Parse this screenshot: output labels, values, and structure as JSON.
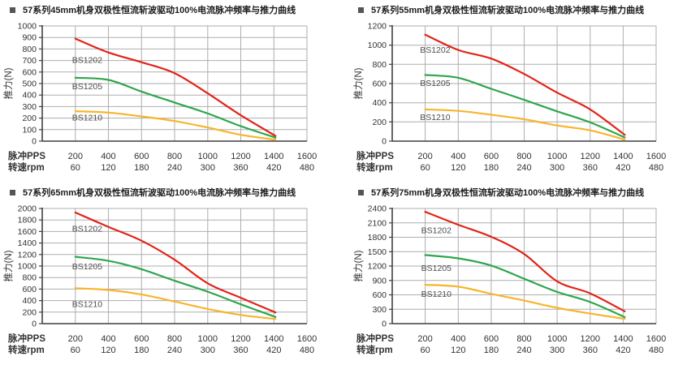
{
  "page": {
    "background": "#ffffff"
  },
  "axis_labels": {
    "row1": "脉冲PPS",
    "row2": "转速rpm",
    "y": "推力(N)"
  },
  "colors": {
    "red": "#e2231a",
    "green": "#2ea64b",
    "yellow": "#f7b52c",
    "grid": "#aeaeae",
    "axis": "#3f3f3f",
    "tick_text": "#333333",
    "series_label": "#4d4d4d",
    "title_text": "#1c1c1c",
    "bullet": "#555555"
  },
  "chart_data": [
    {
      "type": "line",
      "title": "57系列45mm机身双极性恒流斩波驱动100%电流脉冲频率与推力曲线",
      "ylabel": "推力(N)",
      "ylim": [
        0,
        1000
      ],
      "y_step": 100,
      "x_pps": [
        200,
        400,
        600,
        800,
        1000,
        1200,
        1400,
        1600
      ],
      "x_rpm": [
        60,
        120,
        180,
        240,
        300,
        360,
        420,
        480
      ],
      "x_points": [
        200,
        400,
        600,
        800,
        1000,
        1200,
        1410
      ],
      "series": [
        {
          "name": "BS1202",
          "color": "red",
          "values": [
            890,
            770,
            685,
            590,
            415,
            225,
            45
          ],
          "label_at": [
            190,
            705
          ]
        },
        {
          "name": "BS1205",
          "color": "green",
          "values": [
            550,
            532,
            430,
            335,
            240,
            130,
            30
          ],
          "label_at": [
            190,
            475
          ]
        },
        {
          "name": "BS1210",
          "color": "yellow",
          "values": [
            260,
            248,
            215,
            175,
            118,
            55,
            12
          ],
          "label_at": [
            190,
            205
          ]
        }
      ]
    },
    {
      "type": "line",
      "title": "57系列55mm机身双极性恒流斩波驱动100%电流脉冲频率与推力曲线",
      "ylabel": "推力(N)",
      "ylim": [
        0,
        1200
      ],
      "y_step": 200,
      "x_pps": [
        200,
        400,
        600,
        800,
        1000,
        1200,
        1400,
        1600
      ],
      "x_rpm": [
        60,
        120,
        180,
        240,
        300,
        360,
        420,
        480
      ],
      "x_points": [
        200,
        400,
        600,
        800,
        1000,
        1200,
        1410
      ],
      "series": [
        {
          "name": "BS1202",
          "color": "red",
          "values": [
            1110,
            950,
            860,
            700,
            505,
            330,
            65
          ],
          "label_at": [
            178,
            950
          ]
        },
        {
          "name": "BS1205",
          "color": "green",
          "values": [
            690,
            660,
            545,
            430,
            310,
            195,
            38
          ],
          "label_at": [
            178,
            605
          ]
        },
        {
          "name": "BS1210",
          "color": "yellow",
          "values": [
            330,
            315,
            275,
            228,
            163,
            112,
            15
          ],
          "label_at": [
            178,
            250
          ]
        }
      ]
    },
    {
      "type": "line",
      "title": "57系列65mm机身双极性恒流斩波驱动100%电流脉冲频率与推力曲线",
      "ylabel": "推力(N)",
      "ylim": [
        0,
        2000
      ],
      "y_step": 200,
      "x_pps": [
        200,
        400,
        600,
        800,
        1000,
        1200,
        1400,
        1600
      ],
      "x_rpm": [
        60,
        120,
        180,
        240,
        300,
        360,
        420,
        480
      ],
      "x_points": [
        200,
        400,
        600,
        800,
        1000,
        1200,
        1410
      ],
      "series": [
        {
          "name": "BS1202",
          "color": "red",
          "values": [
            1930,
            1680,
            1440,
            1110,
            700,
            450,
            195
          ],
          "label_at": [
            190,
            1650
          ]
        },
        {
          "name": "BS1205",
          "color": "green",
          "values": [
            1160,
            1090,
            945,
            745,
            555,
            335,
            115
          ],
          "label_at": [
            190,
            990
          ]
        },
        {
          "name": "BS1210",
          "color": "yellow",
          "values": [
            615,
            585,
            505,
            385,
            255,
            150,
            80
          ],
          "label_at": [
            190,
            335
          ]
        }
      ]
    },
    {
      "type": "line",
      "title": "57系列75mm机身双极性恒流斩波驱动100%电流脉冲频率与推力曲线",
      "ylabel": "推力(N)",
      "ylim": [
        0,
        2400
      ],
      "y_step": 300,
      "x_pps": [
        200,
        400,
        600,
        800,
        1000,
        1200,
        1400,
        1600
      ],
      "x_rpm": [
        60,
        120,
        180,
        240,
        300,
        360,
        420,
        480
      ],
      "x_points": [
        200,
        400,
        600,
        800,
        1000,
        1200,
        1410
      ],
      "series": [
        {
          "name": "BS1202",
          "color": "red",
          "values": [
            2330,
            2060,
            1810,
            1450,
            880,
            630,
            255
          ],
          "label_at": [
            185,
            1940
          ]
        },
        {
          "name": "BS1205",
          "color": "green",
          "values": [
            1430,
            1360,
            1210,
            935,
            660,
            450,
            135
          ],
          "label_at": [
            185,
            1160
          ]
        },
        {
          "name": "BS1210",
          "color": "yellow",
          "values": [
            810,
            770,
            620,
            480,
            330,
            210,
            100
          ],
          "label_at": [
            185,
            620
          ]
        }
      ]
    }
  ]
}
